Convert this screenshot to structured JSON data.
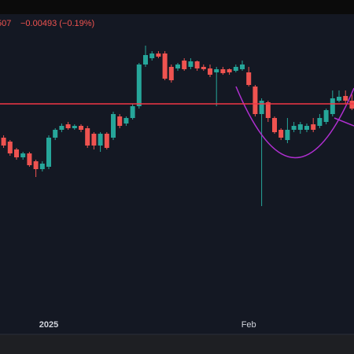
{
  "header": {
    "price": "507",
    "change": "−0.00493 (−0.19%)"
  },
  "chart_data": {
    "type": "candlestick",
    "categories": [
      null,
      null,
      null,
      null,
      null,
      null,
      null,
      "2025",
      null,
      null,
      null,
      null,
      null,
      null,
      null,
      null,
      null,
      null,
      null,
      null,
      null,
      null,
      null,
      null,
      null,
      null,
      null,
      null,
      null,
      null,
      null,
      null,
      null,
      null,
      null,
      null,
      null,
      null,
      "Feb",
      null,
      null,
      null,
      null,
      null,
      null,
      null,
      null,
      null,
      null,
      null,
      null,
      null,
      null,
      null,
      null
    ],
    "open": [
      2.58,
      2.578,
      2.574,
      2.57,
      2.572,
      2.568,
      2.564,
      2.5652,
      2.58,
      2.584,
      2.5868,
      2.5848,
      2.586,
      2.5848,
      2.582,
      2.576,
      2.582,
      2.58,
      2.5908,
      2.5872,
      2.59,
      2.596,
      2.6172,
      2.6204,
      2.6228,
      2.6228,
      2.616,
      2.6152,
      2.6192,
      2.616,
      2.6188,
      2.616,
      2.6152,
      2.6132,
      2.6148,
      2.6148,
      2.614,
      2.6148,
      2.6132,
      2.606,
      2.592,
      2.598,
      2.59,
      2.584,
      2.5788,
      2.584,
      2.584,
      2.584,
      2.5868,
      2.586,
      2.588,
      2.592,
      2.5988,
      2.6012,
      2.5988
    ],
    "high": [
      2.5812,
      2.5788,
      2.5748,
      2.5728,
      2.5728,
      2.5688,
      2.568,
      2.5812,
      2.5848,
      2.5872,
      2.588,
      2.5868,
      2.5868,
      2.586,
      2.5828,
      2.5828,
      2.5828,
      2.5932,
      2.592,
      2.5908,
      2.5972,
      2.618,
      2.6268,
      2.624,
      2.624,
      2.624,
      2.6172,
      2.618,
      2.6204,
      2.6204,
      2.6192,
      2.6172,
      2.6172,
      2.616,
      2.616,
      2.6152,
      2.6172,
      2.6192,
      2.616,
      2.6068,
      2.6,
      2.5988,
      2.5908,
      2.5848,
      2.59,
      2.588,
      2.588,
      2.5872,
      2.59,
      2.592,
      2.5948,
      2.604,
      2.604,
      2.604,
      2.602
    ],
    "low": [
      2.5748,
      2.5708,
      2.5688,
      2.5688,
      2.5652,
      2.56,
      2.5628,
      2.564,
      2.5788,
      2.5828,
      2.584,
      2.584,
      2.5828,
      2.5748,
      2.574,
      2.5728,
      2.574,
      2.5788,
      2.5848,
      2.586,
      2.5892,
      2.5948,
      2.616,
      2.6192,
      2.6204,
      2.6092,
      2.608,
      2.614,
      2.614,
      2.6148,
      2.614,
      2.614,
      2.6108,
      2.596,
      2.612,
      2.612,
      2.6132,
      2.614,
      2.606,
      2.5908,
      2.5452,
      2.588,
      2.582,
      2.5788,
      2.5772,
      2.5828,
      2.582,
      2.5828,
      2.5828,
      2.5848,
      2.5868,
      2.5908,
      2.598,
      2.5972,
      2.594
    ],
    "close": [
      2.576,
      2.572,
      2.57,
      2.572,
      2.566,
      2.564,
      2.5668,
      2.58,
      2.584,
      2.586,
      2.5848,
      2.586,
      2.584,
      2.576,
      2.576,
      2.582,
      2.5748,
      2.592,
      2.586,
      2.59,
      2.596,
      2.6172,
      2.622,
      2.6228,
      2.6212,
      2.61,
      2.6092,
      2.6172,
      2.6148,
      2.6188,
      2.6152,
      2.6148,
      2.612,
      2.6148,
      2.6128,
      2.6132,
      2.616,
      2.6172,
      2.6068,
      2.592,
      2.5988,
      2.59,
      2.5828,
      2.58,
      2.584,
      2.586,
      2.5868,
      2.586,
      2.584,
      2.59,
      2.594,
      2.6,
      2.6008,
      2.5988,
      2.5948
    ],
    "ylim": [
      2.48,
      2.65
    ],
    "up_color": "#26a69a",
    "down_color": "#ef5350",
    "price_line": 2.5972,
    "price_line_color": "#f23645"
  }
}
